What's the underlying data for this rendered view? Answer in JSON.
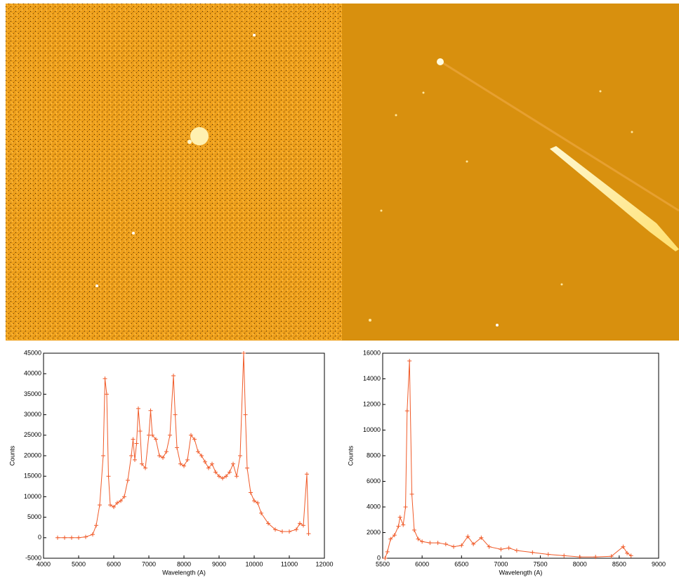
{
  "chart_data": [
    {
      "type": "line",
      "x_label": "Wavelength (A)",
      "y_label": "Counts",
      "color": "#f05a28",
      "x": [
        4400,
        4600,
        4800,
        5000,
        5200,
        5400,
        5500,
        5600,
        5700,
        5750,
        5800,
        5850,
        5900,
        6000,
        6100,
        6200,
        6300,
        6400,
        6500,
        6550,
        6600,
        6650,
        6700,
        6750,
        6800,
        6900,
        7000,
        7050,
        7100,
        7200,
        7300,
        7400,
        7500,
        7600,
        7700,
        7750,
        7800,
        7900,
        8000,
        8100,
        8200,
        8300,
        8400,
        8500,
        8600,
        8700,
        8800,
        8900,
        9000,
        9100,
        9200,
        9300,
        9400,
        9500,
        9600,
        9700,
        9750,
        9800,
        9900,
        10000,
        10100,
        10200,
        10400,
        10600,
        10800,
        11000,
        11200,
        11300,
        11400,
        11500,
        11550
      ],
      "values": [
        0,
        0,
        0,
        0,
        200,
        800,
        3000,
        8000,
        20000,
        38800,
        35000,
        15000,
        8000,
        7500,
        8500,
        9000,
        10000,
        14000,
        20000,
        24000,
        19000,
        23000,
        31500,
        26000,
        18000,
        17000,
        25000,
        31000,
        25000,
        24000,
        20000,
        19500,
        21000,
        25000,
        39500,
        30000,
        22000,
        18000,
        17500,
        19000,
        25000,
        24000,
        21000,
        20000,
        18500,
        17000,
        18000,
        16000,
        15000,
        14500,
        15000,
        16000,
        18000,
        15000,
        20000,
        45000,
        30000,
        17000,
        11000,
        9000,
        8500,
        6000,
        3500,
        2000,
        1500,
        1500,
        2000,
        3500,
        3000,
        15500,
        1000
      ],
      "xlim": [
        4000,
        12000
      ],
      "xticks": [
        4000,
        5000,
        6000,
        7000,
        8000,
        9000,
        10000,
        11000,
        12000
      ],
      "ylim": [
        -5000,
        45000
      ],
      "yticks": [
        -5000,
        0,
        5000,
        10000,
        15000,
        20000,
        25000,
        30000,
        35000,
        40000,
        45000
      ]
    },
    {
      "type": "line",
      "x_label": "Wavelength (A)",
      "y_label": "Counts",
      "color": "#f05a28",
      "x": [
        5530,
        5560,
        5600,
        5650,
        5700,
        5720,
        5760,
        5790,
        5810,
        5840,
        5870,
        5900,
        5950,
        6000,
        6100,
        6200,
        6300,
        6400,
        6500,
        6580,
        6650,
        6750,
        6850,
        7000,
        7100,
        7200,
        7400,
        7600,
        7800,
        8000,
        8200,
        8400,
        8550,
        8600,
        8650
      ],
      "values": [
        0,
        500,
        1500,
        1800,
        2500,
        3200,
        2600,
        4000,
        11500,
        15400,
        5000,
        2200,
        1500,
        1300,
        1200,
        1200,
        1100,
        900,
        1000,
        1700,
        1100,
        1600,
        900,
        700,
        800,
        600,
        450,
        300,
        200,
        100,
        100,
        150,
        900,
        400,
        200
      ],
      "xlim": [
        5500,
        9000
      ],
      "xticks": [
        5500,
        6000,
        6500,
        7000,
        7500,
        8000,
        8500,
        9000
      ],
      "ylim": [
        0,
        16000
      ],
      "yticks": [
        0,
        2000,
        4000,
        6000,
        8000,
        10000,
        12000,
        14000,
        16000
      ]
    }
  ]
}
